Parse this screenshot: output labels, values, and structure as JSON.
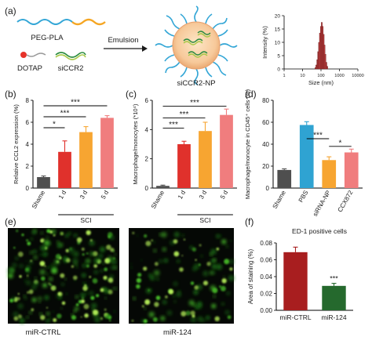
{
  "figure": {
    "panel_letters": [
      "(a)",
      "(b)",
      "(c)",
      "(d)",
      "(e)",
      "(f)"
    ],
    "schematic": {
      "peg_pla_label": "PEG-PLA",
      "dotap_label": "DOTAP",
      "siccr2_label": "siCCR2",
      "arrow_label": "Emulsion",
      "np_label": "siCCR2-NP"
    },
    "images": {
      "left_caption": "miR-CTRL",
      "right_caption": "miR-124"
    }
  },
  "colors": {
    "grey": "#4f4f4f",
    "red": "#e0312c",
    "orange": "#f7a531",
    "pink": "#f07d7e",
    "blue": "#2fa3d2",
    "dark_red": "#a81e1f",
    "dark_green": "#25692d",
    "size_dist": "#b33b3b"
  },
  "chart_data": [
    {
      "panel": "a",
      "type": "bar",
      "xlabel": "Size (nm)",
      "ylabel": "Intensity (%)",
      "x_log": true,
      "x_ticks": [
        1,
        10,
        100,
        1000,
        10000
      ],
      "x_tick_labels": [
        "1",
        "10",
        "100",
        "1000",
        "10000"
      ],
      "y_ticks": [
        0,
        5,
        10,
        15,
        20
      ],
      "ylim": [
        0,
        20
      ],
      "categories": [
        50,
        56,
        63,
        70,
        79,
        88,
        99,
        111,
        124,
        139,
        156,
        174,
        195,
        218
      ],
      "values": [
        0.5,
        1.5,
        3.5,
        6.5,
        10,
        13.5,
        16,
        17.5,
        16,
        13,
        9,
        5.5,
        2.5,
        1
      ]
    },
    {
      "panel": "b",
      "type": "bar",
      "ylabel": "Relative CCL2 expression (%)",
      "ylim": [
        0,
        8
      ],
      "y_ticks": [
        0,
        2,
        4,
        6,
        8
      ],
      "categories": [
        "Shame",
        "1 d",
        "3 d",
        "5 d"
      ],
      "values": [
        1.0,
        3.3,
        5.1,
        6.4
      ],
      "errors": [
        0.1,
        1.0,
        0.5,
        0.2
      ],
      "group_label": "SCI",
      "significance": [
        {
          "from": 0,
          "to": 1,
          "label": "*",
          "y": 5.5
        },
        {
          "from": 0,
          "to": 2,
          "label": "***",
          "y": 6.5
        },
        {
          "from": 0,
          "to": 3,
          "label": "***",
          "y": 7.5
        }
      ]
    },
    {
      "panel": "c",
      "type": "bar",
      "ylabel": "Macrophage/monocytes (*10⁴)",
      "ylim": [
        0,
        6
      ],
      "y_ticks": [
        0,
        2,
        4,
        6
      ],
      "categories": [
        "Shame",
        "1 d",
        "3 d",
        "5 d"
      ],
      "values": [
        0.15,
        3.0,
        3.9,
        5.0
      ],
      "errors": [
        0.05,
        0.2,
        0.6,
        0.4
      ],
      "group_label": "SCI",
      "significance": [
        {
          "from": 0,
          "to": 1,
          "label": "***",
          "y": 4.1
        },
        {
          "from": 0,
          "to": 2,
          "label": "***",
          "y": 4.8
        },
        {
          "from": 0,
          "to": 3,
          "label": "***",
          "y": 5.6
        }
      ]
    },
    {
      "panel": "d",
      "type": "bar",
      "ylabel": "Macrophage/monocyte in CD45⁺ cells (%)",
      "ylim": [
        0,
        80
      ],
      "y_ticks": [
        0,
        20,
        40,
        60,
        80
      ],
      "categories": [
        "Shame",
        "PBS",
        "siRNA-NP",
        "CCX872"
      ],
      "values": [
        16.5,
        57.5,
        25.5,
        32.5
      ],
      "errors": [
        1.0,
        3.0,
        3.0,
        3.0
      ],
      "significance": [
        {
          "from": 1,
          "to": 2,
          "label": "***",
          "y": 45
        },
        {
          "from": 2,
          "to": 3,
          "label": "*",
          "y": 38
        }
      ]
    },
    {
      "panel": "f",
      "type": "bar",
      "title": "ED-1 positive cells",
      "ylabel": "Area of staining (%)",
      "ylim": [
        0,
        0.08
      ],
      "y_ticks": [
        0,
        0.02,
        0.04,
        0.06,
        0.08
      ],
      "y_tick_labels": [
        "0.00",
        "0.02",
        "0.04",
        "0.06",
        "0.08"
      ],
      "categories": [
        "miR-CTRL",
        "miR-124"
      ],
      "values": [
        0.069,
        0.029
      ],
      "errors": [
        0.006,
        0.003
      ],
      "significance": [
        {
          "on": 1,
          "label": "***"
        }
      ]
    }
  ]
}
